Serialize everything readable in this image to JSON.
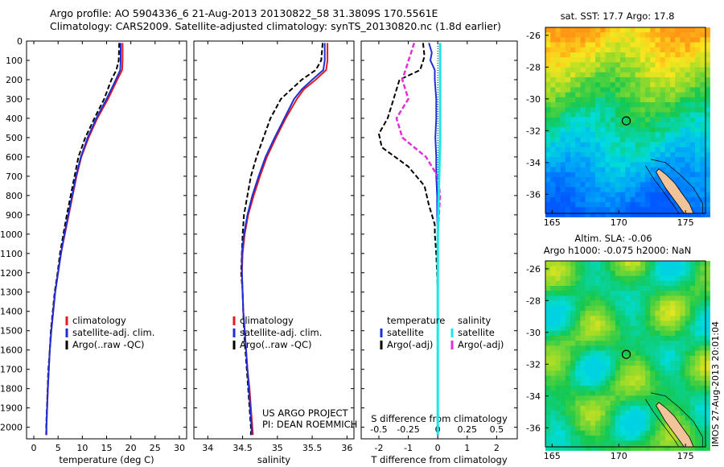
{
  "header": {
    "line1": "Argo profile: AO 5904336_6 21-Aug-2013 20130822_58 31.3809S 170.5561E",
    "line2": "Climatology: CARS2009. Satellite-adjusted climatology: synTS_20130820.nc (1.8d earlier)"
  },
  "colors": {
    "climatology": "#e41a1c",
    "satellite": "#1f2fd8",
    "argo": "#000000",
    "salinity_sat": "#19e6e6",
    "salinity_argo": "#e030d8"
  },
  "depth_axis": {
    "ticks": [
      0,
      100,
      200,
      300,
      400,
      500,
      600,
      700,
      800,
      900,
      1000,
      1100,
      1200,
      1300,
      1400,
      1500,
      1600,
      1700,
      1800,
      1900,
      2000
    ],
    "range": [
      0,
      2060
    ]
  },
  "panels": [
    {
      "id": "temperature",
      "xlabel": "temperature (deg C)",
      "xticks": [
        0,
        5,
        10,
        15,
        20,
        25,
        30
      ],
      "xrange": [
        -1.5,
        31.5
      ],
      "legend": [
        {
          "label": "climatology",
          "color": "#e41a1c",
          "dash": "solid"
        },
        {
          "label": "satellite-adj. clim.",
          "color": "#1f2fd8",
          "dash": "solid"
        },
        {
          "label": "Argo(..raw -QC)",
          "color": "#000000",
          "dash": "dash"
        }
      ],
      "series": {
        "climatology": [
          [
            18.3,
            10
          ],
          [
            18.3,
            100
          ],
          [
            18.2,
            150
          ],
          [
            17.2,
            200
          ],
          [
            15.3,
            300
          ],
          [
            13.1,
            400
          ],
          [
            11.3,
            500
          ],
          [
            9.8,
            600
          ],
          [
            8.8,
            700
          ],
          [
            8.0,
            800
          ],
          [
            7.2,
            900
          ],
          [
            6.4,
            1000
          ],
          [
            5.6,
            1100
          ],
          [
            5.0,
            1200
          ],
          [
            4.4,
            1300
          ],
          [
            4.0,
            1400
          ],
          [
            3.6,
            1500
          ],
          [
            3.3,
            1600
          ],
          [
            3.1,
            1700
          ],
          [
            2.9,
            1800
          ],
          [
            2.75,
            1900
          ],
          [
            2.6,
            2000
          ],
          [
            2.6,
            2040
          ]
        ],
        "satellite": [
          [
            17.9,
            10
          ],
          [
            17.9,
            100
          ],
          [
            17.8,
            150
          ],
          [
            16.9,
            200
          ],
          [
            15.0,
            300
          ],
          [
            12.9,
            400
          ],
          [
            11.1,
            500
          ],
          [
            9.7,
            600
          ],
          [
            8.7,
            700
          ],
          [
            7.9,
            800
          ],
          [
            7.1,
            900
          ],
          [
            6.3,
            1000
          ],
          [
            5.6,
            1100
          ],
          [
            5.0,
            1200
          ],
          [
            4.4,
            1300
          ],
          [
            4.0,
            1400
          ],
          [
            3.6,
            1500
          ],
          [
            3.3,
            1600
          ],
          [
            3.1,
            1700
          ],
          [
            2.9,
            1800
          ],
          [
            2.75,
            1900
          ],
          [
            2.6,
            2000
          ],
          [
            2.6,
            2040
          ]
        ],
        "argo": [
          [
            17.6,
            10
          ],
          [
            17.5,
            100
          ],
          [
            17.0,
            150
          ],
          [
            16.0,
            200
          ],
          [
            14.5,
            300
          ],
          [
            12.5,
            400
          ],
          [
            10.6,
            500
          ],
          [
            9.2,
            600
          ],
          [
            8.4,
            700
          ],
          [
            7.6,
            800
          ],
          [
            6.8,
            900
          ],
          [
            6.1,
            1000
          ],
          [
            5.4,
            1100
          ],
          [
            4.9,
            1200
          ],
          [
            4.3,
            1300
          ],
          [
            3.9,
            1400
          ],
          [
            3.5,
            1500
          ],
          [
            3.3,
            1600
          ],
          [
            3.0,
            1700
          ],
          [
            2.85,
            1800
          ],
          [
            2.7,
            1900
          ],
          [
            2.55,
            2000
          ],
          [
            2.55,
            2040
          ]
        ]
      }
    },
    {
      "id": "salinity",
      "xlabel": "salinity",
      "xticks": [
        34,
        34.5,
        35,
        35.5,
        36
      ],
      "xrange": [
        33.8,
        36.1
      ],
      "legend": [
        {
          "label": "climatology",
          "color": "#e41a1c",
          "dash": "solid"
        },
        {
          "label": "satellite-adj. clim.",
          "color": "#1f2fd8",
          "dash": "solid"
        },
        {
          "label": "Argo(..raw -QC)",
          "color": "#000000",
          "dash": "dash"
        }
      ],
      "note_line1": "US ARGO PROJECT",
      "note_line2": "PI: DEAN ROEMMICH",
      "series": {
        "climatology": [
          [
            35.72,
            10
          ],
          [
            35.72,
            100
          ],
          [
            35.7,
            150
          ],
          [
            35.55,
            200
          ],
          [
            35.38,
            250
          ],
          [
            35.28,
            300
          ],
          [
            35.12,
            400
          ],
          [
            34.98,
            500
          ],
          [
            34.85,
            600
          ],
          [
            34.75,
            700
          ],
          [
            34.66,
            800
          ],
          [
            34.58,
            900
          ],
          [
            34.53,
            1000
          ],
          [
            34.5,
            1100
          ],
          [
            34.49,
            1200
          ],
          [
            34.5,
            1300
          ],
          [
            34.51,
            1400
          ],
          [
            34.53,
            1500
          ],
          [
            34.55,
            1600
          ],
          [
            34.57,
            1700
          ],
          [
            34.6,
            1800
          ],
          [
            34.62,
            1900
          ],
          [
            34.64,
            2000
          ],
          [
            34.65,
            2040
          ]
        ],
        "satellite": [
          [
            35.68,
            10
          ],
          [
            35.68,
            100
          ],
          [
            35.66,
            150
          ],
          [
            35.5,
            200
          ],
          [
            35.35,
            250
          ],
          [
            35.24,
            300
          ],
          [
            35.1,
            400
          ],
          [
            34.96,
            500
          ],
          [
            34.83,
            600
          ],
          [
            34.73,
            700
          ],
          [
            34.64,
            800
          ],
          [
            34.57,
            900
          ],
          [
            34.52,
            1000
          ],
          [
            34.49,
            1100
          ],
          [
            34.49,
            1200
          ],
          [
            34.5,
            1300
          ],
          [
            34.51,
            1400
          ],
          [
            34.53,
            1500
          ],
          [
            34.55,
            1600
          ],
          [
            34.57,
            1700
          ],
          [
            34.59,
            1800
          ],
          [
            34.61,
            1900
          ],
          [
            34.63,
            2000
          ],
          [
            34.63,
            2040
          ]
        ],
        "argo": [
          [
            35.65,
            10
          ],
          [
            35.63,
            100
          ],
          [
            35.55,
            150
          ],
          [
            35.35,
            200
          ],
          [
            35.2,
            250
          ],
          [
            35.05,
            300
          ],
          [
            34.9,
            400
          ],
          [
            34.8,
            500
          ],
          [
            34.7,
            600
          ],
          [
            34.62,
            700
          ],
          [
            34.57,
            800
          ],
          [
            34.52,
            900
          ],
          [
            34.5,
            1000
          ],
          [
            34.49,
            1100
          ],
          [
            34.48,
            1200
          ],
          [
            34.5,
            1300
          ],
          [
            34.51,
            1400
          ],
          [
            34.52,
            1500
          ],
          [
            34.54,
            1600
          ],
          [
            34.56,
            1700
          ],
          [
            34.58,
            1800
          ],
          [
            34.6,
            1900
          ],
          [
            34.62,
            2000
          ],
          [
            34.62,
            2040
          ]
        ]
      }
    },
    {
      "id": "difference",
      "xlabel": "T difference from climatology",
      "xticks": [
        -2,
        -1,
        0,
        1,
        2
      ],
      "top_label": "S difference from climatology",
      "top_ticks": [
        -0.5,
        -0.25,
        0,
        0.25,
        0.5
      ],
      "xrange": [
        -2.6,
        2.7
      ],
      "legend_left_title": "temperature",
      "legend_right_title": "salinity",
      "legend": [
        {
          "label": "satellite",
          "color": "#1f2fd8",
          "dash": "solid"
        },
        {
          "label": "Argo(-adj)",
          "color": "#000000",
          "dash": "dash"
        },
        {
          "label": "satellite",
          "color": "#19e6e6",
          "dash": "solid"
        },
        {
          "label": "Argo(-adj)",
          "color": "#e030d8",
          "dash": "dash"
        }
      ],
      "series": {
        "t_satellite": [
          [
            -0.3,
            10
          ],
          [
            -0.2,
            60
          ],
          [
            -0.25,
            100
          ],
          [
            -0.1,
            150
          ],
          [
            -0.1,
            200
          ],
          [
            -0.05,
            300
          ],
          [
            -0.05,
            400
          ],
          [
            -0.08,
            500
          ],
          [
            -0.05,
            600
          ],
          [
            -0.05,
            700
          ],
          [
            -0.02,
            800
          ],
          [
            -0.02,
            900
          ],
          [
            0,
            1000
          ],
          [
            0,
            1500
          ],
          [
            0,
            2040
          ]
        ],
        "t_argo": [
          [
            -0.5,
            10
          ],
          [
            -0.45,
            80
          ],
          [
            -0.6,
            150
          ],
          [
            -1.3,
            200
          ],
          [
            -1.5,
            300
          ],
          [
            -1.7,
            400
          ],
          [
            -2.0,
            480
          ],
          [
            -1.9,
            550
          ],
          [
            -1.0,
            650
          ],
          [
            -0.45,
            750
          ],
          [
            -0.3,
            850
          ],
          [
            -0.1,
            950
          ],
          [
            -0.1,
            1000
          ],
          [
            -0.05,
            1100
          ],
          [
            0,
            1300
          ],
          [
            0,
            2040
          ]
        ],
        "s_satellite": [
          [
            0.02,
            10
          ],
          [
            0.02,
            500
          ],
          [
            0,
            1000
          ],
          [
            0,
            2040
          ]
        ],
        "s_argo": [
          [
            -0.2,
            10
          ],
          [
            -0.3,
            200
          ],
          [
            -0.25,
            300
          ],
          [
            -0.35,
            400
          ],
          [
            -0.3,
            500
          ],
          [
            -0.1,
            600
          ],
          [
            0,
            700
          ],
          [
            0.02,
            800
          ],
          [
            0,
            1000
          ],
          [
            0,
            2040
          ]
        ]
      }
    }
  ],
  "maps": [
    {
      "title_line1": "sat. SST: 17.7 Argo: 17.8",
      "title_line2": "",
      "lat_ticks": [
        -26,
        -28,
        -30,
        -32,
        -34,
        -36
      ],
      "lon_ticks": [
        165,
        170,
        175
      ],
      "lon_range": [
        164.5,
        176.5
      ],
      "lat_range": [
        -37.2,
        -25.5
      ],
      "marker": [
        170.56,
        -31.38
      ],
      "kind": "sst"
    },
    {
      "title_line1": "Altim. SLA: -0.06",
      "title_line2": "Argo h1000: -0.075 h2000: NaN",
      "lat_ticks": [
        -26,
        -28,
        -30,
        -32,
        -34,
        -36
      ],
      "lon_ticks": [
        165,
        170,
        175
      ],
      "lon_range": [
        164.5,
        176.5
      ],
      "lat_range": [
        -37.2,
        -25.5
      ],
      "marker": [
        170.56,
        -31.38
      ],
      "kind": "sla"
    }
  ],
  "side_stamp": "IMOS 27-Aug-2013 20:01:04"
}
